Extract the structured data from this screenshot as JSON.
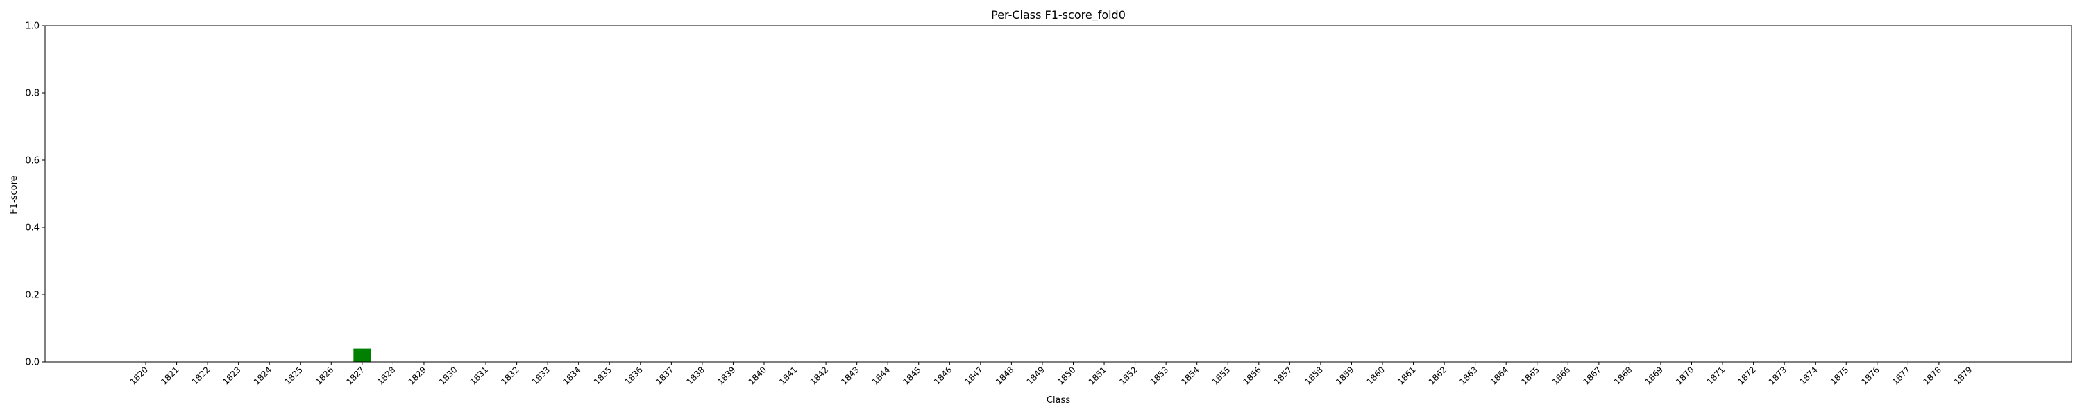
{
  "chart_data": {
    "type": "bar",
    "title": "Per-Class F1-score_fold0",
    "xlabel": "Class",
    "ylabel": "F1-score",
    "ylim": [
      0,
      1.0
    ],
    "yticks": [
      "0.0",
      "0.2",
      "0.4",
      "0.6",
      "0.8",
      "1.0"
    ],
    "categories": [
      "1820",
      "1821",
      "1822",
      "1823",
      "1824",
      "1825",
      "1826",
      "1827",
      "1828",
      "1829",
      "1830",
      "1831",
      "1832",
      "1833",
      "1834",
      "1835",
      "1836",
      "1837",
      "1838",
      "1839",
      "1840",
      "1841",
      "1842",
      "1843",
      "1844",
      "1845",
      "1846",
      "1847",
      "1848",
      "1849",
      "1850",
      "1851",
      "1852",
      "1853",
      "1854",
      "1855",
      "1856",
      "1857",
      "1858",
      "1859",
      "1860",
      "1861",
      "1862",
      "1863",
      "1864",
      "1865",
      "1866",
      "1867",
      "1868",
      "1869",
      "1870",
      "1871",
      "1872",
      "1873",
      "1874",
      "1875",
      "1876",
      "1877",
      "1878",
      "1879"
    ],
    "values": [
      0,
      0,
      0,
      0,
      0,
      0,
      0,
      0.04,
      0,
      0,
      0,
      0,
      0,
      0,
      0,
      0,
      0,
      0,
      0,
      0,
      0,
      0,
      0,
      0,
      0,
      0,
      0,
      0,
      0,
      0,
      0,
      0,
      0,
      0,
      0,
      0,
      0,
      0,
      0,
      0,
      0,
      0,
      0,
      0,
      0,
      0,
      0,
      0,
      0,
      0,
      0,
      0,
      0,
      0,
      0,
      0,
      0,
      0,
      0,
      0
    ],
    "bar_color": "#008000",
    "grid": false,
    "legend": "none"
  }
}
